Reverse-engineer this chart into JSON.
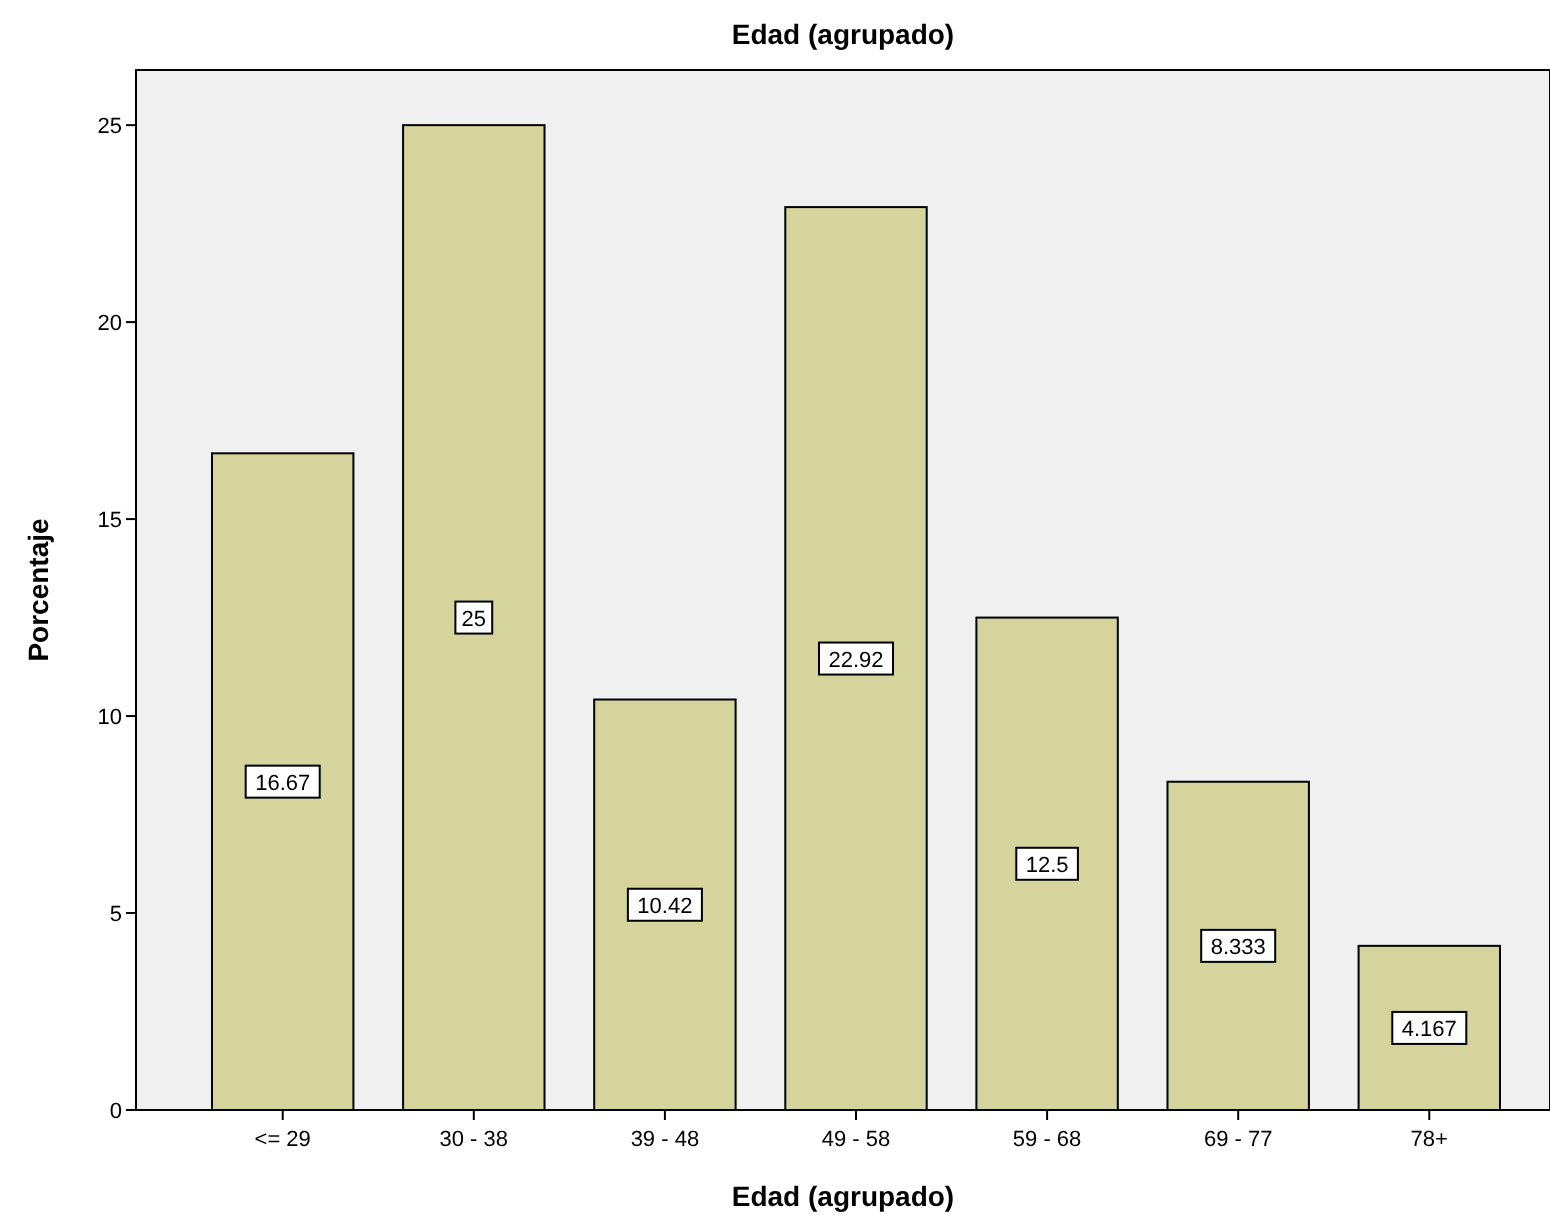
{
  "chart_data": {
    "type": "bar",
    "title": "Edad (agrupado)",
    "xlabel": "Edad (agrupado)",
    "ylabel": "Porcentaje",
    "categories": [
      "<= 29",
      "30 - 38",
      "39 - 48",
      "49 - 58",
      "59 - 68",
      "69 - 77",
      "78+"
    ],
    "values": [
      16.67,
      25,
      10.42,
      22.92,
      12.5,
      8.333,
      4.167
    ],
    "color": "#d4d49c",
    "ylim": [
      0,
      26.4
    ],
    "yticks": [
      0,
      5,
      10,
      15,
      20,
      25
    ],
    "data_labels": true,
    "grid": false
  }
}
